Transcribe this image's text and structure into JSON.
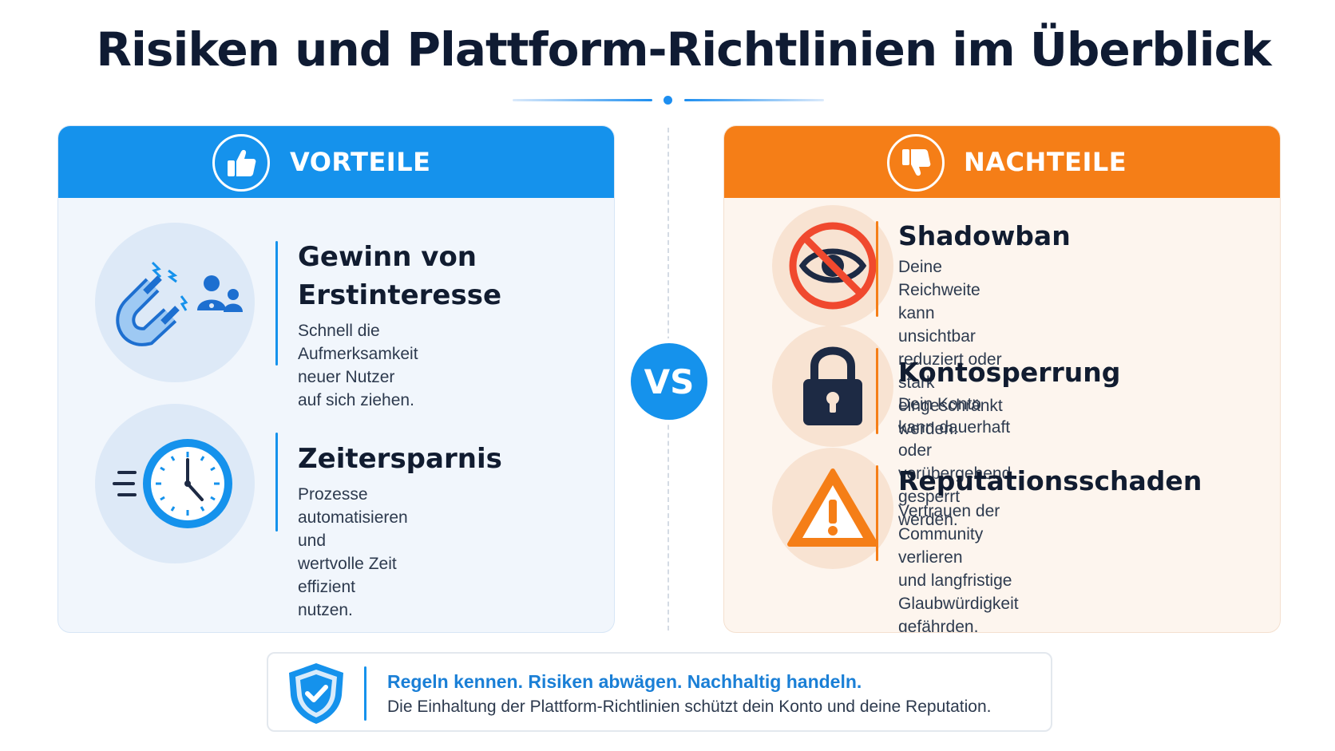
{
  "title": "Risiken und Plattform-Richtlinien im Überblick",
  "colors": {
    "blue": "#1592ec",
    "orange": "#f57e17",
    "dark": "#0f1b33"
  },
  "vs_label": "VS",
  "left_panel": {
    "header": "VORTEILE",
    "header_icon": "thumbs-up-icon",
    "items": [
      {
        "icon": "magnet-attract-users-icon",
        "title": "Gewinn von Erstinteresse",
        "title_line1": "Gewinn von",
        "title_line2": "Erstinteresse",
        "text_line1": "Schnell die Aufmerksamkeit",
        "text_line2": "neuer Nutzer auf sich ziehen."
      },
      {
        "icon": "fast-clock-icon",
        "title": "Zeitersparnis",
        "text_line1": "Prozesse automatisieren und",
        "text_line2": "wertvolle Zeit effizient nutzen."
      }
    ]
  },
  "right_panel": {
    "header": "NACHTEILE",
    "header_icon": "thumbs-down-icon",
    "items": [
      {
        "icon": "eye-crossed-icon",
        "title": "Shadowban",
        "text_line1": "Deine Reichweite kann unsichtbar",
        "text_line2": "reduziert oder stark eingeschränkt",
        "text_line3": "werden."
      },
      {
        "icon": "padlock-icon",
        "title": "Kontosperrung",
        "text_line1": "Dein Konto kann dauerhaft oder",
        "text_line2": "vorübergehend gesperrt werden."
      },
      {
        "icon": "warning-triangle-icon",
        "title": "Reputationsschaden",
        "text_line1": "Vertrauen der Community verlieren",
        "text_line2": "und langfristige Glaubwürdigkeit",
        "text_line3": "gefährden."
      }
    ]
  },
  "footer": {
    "icon": "shield-check-icon",
    "headline": "Regeln kennen. Risiken abwägen. Nachhaltig handeln.",
    "text": "Die Einhaltung der Plattform-Richtlinien schützt dein Konto und deine Reputation."
  }
}
